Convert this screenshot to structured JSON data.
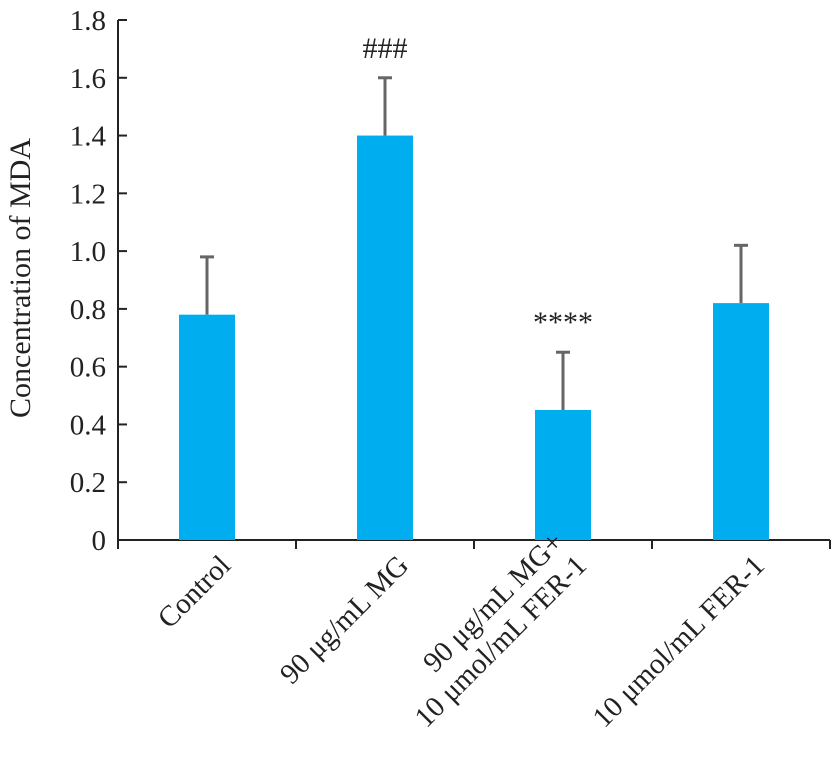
{
  "chart_data": {
    "type": "bar",
    "title": "",
    "xlabel": "",
    "ylabel": "Concentration of MDA",
    "ylim": [
      0,
      1.8
    ],
    "yticks": [
      "0",
      "0.2",
      "0.4",
      "0.6",
      "0.8",
      "1.0",
      "1.2",
      "1.4",
      "1.6",
      "1.8"
    ],
    "categories": [
      [
        "Control"
      ],
      [
        "90 μg/mL MG"
      ],
      [
        "90 μg/mL MG+",
        "10 μmol/mL FER-1"
      ],
      [
        "10 μmol/mL FER-1"
      ]
    ],
    "values": [
      0.78,
      1.4,
      0.45,
      0.82
    ],
    "errors": [
      0.2,
      0.2,
      0.2,
      0.2
    ],
    "annotations": [
      "",
      "###",
      "****",
      ""
    ],
    "bar_color": "#00aeef",
    "error_color": "#666666",
    "grid": false,
    "legend": "none"
  }
}
